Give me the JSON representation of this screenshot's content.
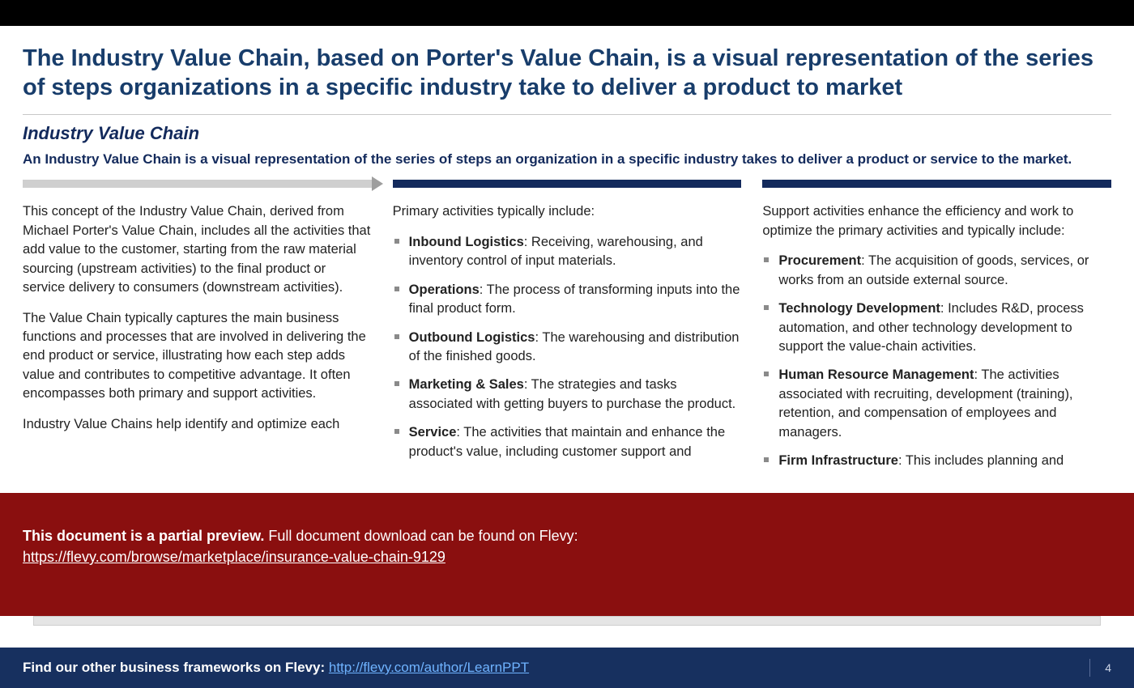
{
  "colors": {
    "title": "#183d6b",
    "subhead": "#132a5c",
    "lede": "#132a5c",
    "footer_bg": "#17305f",
    "footer_link": "#6fb3ff",
    "banner_bg": "#8a0f0f"
  },
  "title": "The Industry Value Chain, based on Porter's Value Chain, is a visual representation of the series of steps organizations in a specific industry take to deliver a product to market",
  "subhead": "Industry Value Chain",
  "lede": "An Industry Value Chain is a visual representation of the series of steps an organization in a specific industry takes to deliver a product or service to the market.",
  "columns": {
    "col1": {
      "p1": "This concept of the Industry Value Chain, derived from Michael Porter's Value Chain, includes all the activities that add value to the customer, starting from the raw material sourcing (upstream activities) to the final product or service delivery to consumers (downstream activities).",
      "p2": "The Value Chain typically captures the main business functions and processes that are involved in delivering the end product or service, illustrating how each step adds value and contributes to competitive advantage. It often encompasses both primary and support activities.",
      "p3": "Industry Value Chains help identify and optimize each"
    },
    "col2": {
      "intro": "Primary activities typically include:",
      "items": [
        {
          "term": "Inbound Logistics",
          "desc": ": Receiving, warehousing, and inventory control of input materials."
        },
        {
          "term": "Operations",
          "desc": ": The process of transforming inputs into the final product form."
        },
        {
          "term": "Outbound Logistics",
          "desc": ": The warehousing and distribution of the finished goods."
        },
        {
          "term": "Marketing & Sales",
          "desc": ": The strategies and tasks associated with getting buyers to purchase the product."
        },
        {
          "term": "Service",
          "desc": ": The activities that maintain and enhance the product's value, including customer support and"
        }
      ]
    },
    "col3": {
      "intro": "Support activities enhance the efficiency and work to optimize the primary activities and typically include:",
      "items": [
        {
          "term": "Procurement",
          "desc": ": The acquisition of goods, services, or works from an outside external source."
        },
        {
          "term": "Technology Development",
          "desc": ": Includes R&D, process automation, and other technology development to support the value-chain activities."
        },
        {
          "term": "Human Resource Management",
          "desc": ": The activities associated with recruiting, development (training), retention, and compensation of employees and managers."
        },
        {
          "term": "Firm Infrastructure",
          "desc": ": This includes planning and"
        }
      ]
    }
  },
  "banner": {
    "bold": "This document is a partial preview.",
    "rest": "  Full document download can be found on Flevy:",
    "url": "https://flevy.com/browse/marketplace/insurance-value-chain-9129"
  },
  "footer": {
    "text": "Find our other business frameworks on Flevy: ",
    "url": "http://flevy.com/author/LearnPPT",
    "page": "4"
  }
}
